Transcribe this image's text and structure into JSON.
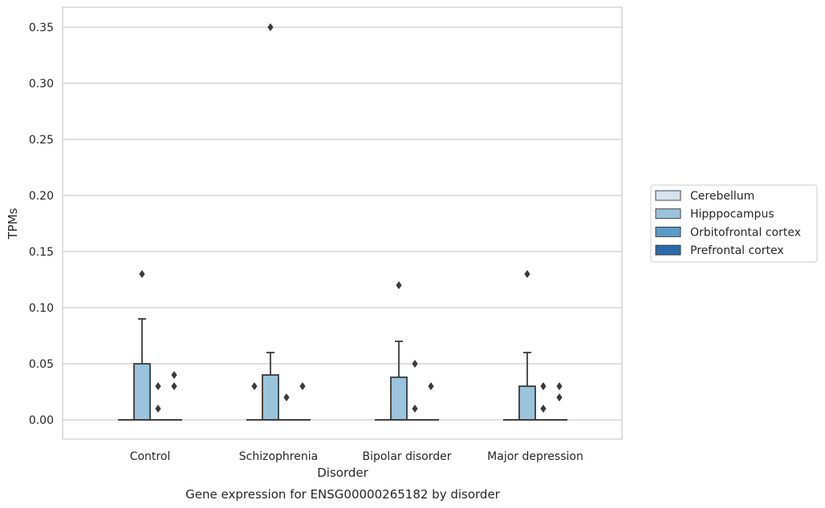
{
  "chart_data": {
    "type": "box",
    "caption": "Gene expression for ENSG00000265182 by disorder",
    "xlabel": "Disorder",
    "ylabel": "TPMs",
    "ylim": [
      -0.017,
      0.367
    ],
    "yticks": [
      0.0,
      0.05,
      0.1,
      0.15,
      0.2,
      0.25,
      0.3,
      0.35
    ],
    "ytick_labels": [
      "0.00",
      "0.05",
      "0.10",
      "0.15",
      "0.20",
      "0.25",
      "0.30",
      "0.35"
    ],
    "grid": true,
    "legend_position": "right",
    "categories": [
      "Control",
      "Schizophrenia",
      "Bipolar disorder",
      "Major depression"
    ],
    "series": [
      {
        "name": "Cerebellum",
        "color": "#d6e3ef",
        "boxes": [
          {
            "q1": 0,
            "median": 0,
            "q3": 0,
            "whisker_low": 0,
            "whisker_high": 0,
            "outliers": []
          },
          {
            "q1": 0,
            "median": 0,
            "q3": 0,
            "whisker_low": 0,
            "whisker_high": 0,
            "outliers": []
          },
          {
            "q1": 0,
            "median": 0,
            "q3": 0,
            "whisker_low": 0,
            "whisker_high": 0,
            "outliers": []
          },
          {
            "q1": 0,
            "median": 0,
            "q3": 0,
            "whisker_low": 0,
            "whisker_high": 0,
            "outliers": []
          }
        ]
      },
      {
        "name": "Hipppocampus",
        "color": "#9ac3dc",
        "boxes": [
          {
            "q1": 0,
            "median": 0,
            "q3": 0.05,
            "whisker_low": 0,
            "whisker_high": 0.09,
            "outliers": [
              0.13
            ]
          },
          {
            "q1": 0,
            "median": 0,
            "q3": 0.04,
            "whisker_low": 0,
            "whisker_high": 0.06,
            "outliers": [
              0.35
            ]
          },
          {
            "q1": 0,
            "median": 0,
            "q3": 0.038,
            "whisker_low": 0,
            "whisker_high": 0.07,
            "outliers": [
              0.12
            ]
          },
          {
            "q1": 0,
            "median": 0,
            "q3": 0.03,
            "whisker_low": 0,
            "whisker_high": 0.06,
            "outliers": [
              0.13
            ]
          }
        ]
      },
      {
        "name": "Orbitofrontal cortex",
        "color": "#5a9bc8",
        "boxes": [
          {
            "q1": 0,
            "median": 0,
            "q3": 0,
            "whisker_low": 0,
            "whisker_high": 0,
            "outliers": [
              0.03,
              0.01
            ]
          },
          {
            "q1": 0,
            "median": 0,
            "q3": 0,
            "whisker_low": 0,
            "whisker_high": 0,
            "outliers": [
              0.02
            ]
          },
          {
            "q1": 0,
            "median": 0,
            "q3": 0,
            "whisker_low": 0,
            "whisker_high": 0,
            "outliers": [
              0.05,
              0.01
            ]
          },
          {
            "q1": 0,
            "median": 0,
            "q3": 0,
            "whisker_low": 0,
            "whisker_high": 0,
            "outliers": [
              0.03,
              0.01
            ]
          }
        ]
      },
      {
        "name": "Prefrontal cortex",
        "color": "#2a6aa9",
        "boxes": [
          {
            "q1": 0,
            "median": 0,
            "q3": 0,
            "whisker_low": 0,
            "whisker_high": 0,
            "outliers": [
              0.04,
              0.03
            ]
          },
          {
            "q1": 0,
            "median": 0,
            "q3": 0,
            "whisker_low": 0,
            "whisker_high": 0,
            "outliers": [
              0.03
            ]
          },
          {
            "q1": 0,
            "median": 0,
            "q3": 0,
            "whisker_low": 0,
            "whisker_high": 0,
            "outliers": [
              0.03
            ]
          },
          {
            "q1": 0,
            "median": 0,
            "q3": 0,
            "whisker_low": 0,
            "whisker_high": 0,
            "outliers": [
              0.03,
              0.02
            ]
          }
        ]
      }
    ],
    "extra_outliers": [
      {
        "category_index": 1,
        "value": 0.03,
        "series_index": 0
      }
    ]
  }
}
